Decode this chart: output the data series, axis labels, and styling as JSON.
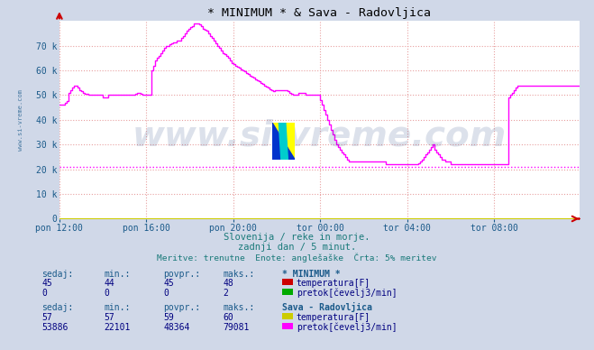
{
  "title": "* MINIMUM * & Sava - Radovljica",
  "bg_color": "#d0d8e8",
  "plot_bg_color": "#ffffff",
  "grid_color": "#e8a0a0",
  "avg_line_value": 21000,
  "avg_line_color": "#ff00ff",
  "sava_line_color": "#ff00ff",
  "axis_arrow_color": "#cc0000",
  "watermark_text": "www.si-vreme.com",
  "watermark_color": "#1a3a7a",
  "watermark_alpha": 0.15,
  "si_vreme_label": "www.si-vreme.com",
  "si_vreme_color": "#1a5a8a",
  "subtitle1": "Slovenija / reke in morje.",
  "subtitle2": "zadnji dan / 5 minut.",
  "subtitle3": "Meritve: trenutne  Enote: anglešaške  Črta: 5% meritev",
  "subtitle_color": "#1a7a7a",
  "table_header_color": "#1a5a8a",
  "table_value_color": "#000080",
  "yticks": [
    0,
    10000,
    20000,
    30000,
    40000,
    50000,
    60000,
    70000
  ],
  "ytick_labels": [
    "0",
    "10 k",
    "20 k",
    "30 k",
    "40 k",
    "50 k",
    "60 k",
    "70 k"
  ],
  "xtick_positions": [
    0,
    48,
    96,
    144,
    192,
    240
  ],
  "xtick_labels": [
    "pon 12:00",
    "pon 16:00",
    "pon 20:00",
    "tor 00:00",
    "tor 04:00",
    "tor 08:00"
  ],
  "station1_name": "* MINIMUM *",
  "station1_temp_sedaj": 45,
  "station1_temp_min": 44,
  "station1_temp_povpr": 45,
  "station1_temp_maks": 48,
  "station1_pretok_sedaj": 0,
  "station1_pretok_min": 0,
  "station1_pretok_povpr": 0,
  "station1_pretok_maks": 2,
  "station1_temp_color": "#cc0000",
  "station1_pretok_color": "#00aa00",
  "station2_name": "Sava - Radovljica",
  "station2_temp_sedaj": 57,
  "station2_temp_min": 57,
  "station2_temp_povpr": 59,
  "station2_temp_maks": 60,
  "station2_pretok_sedaj": 53886,
  "station2_pretok_min": 22101,
  "station2_pretok_povpr": 48364,
  "station2_pretok_maks": 79081,
  "station2_temp_color": "#cccc00",
  "station2_pretok_color": "#ff00ff",
  "sava_flow": [
    46000,
    46000,
    46000,
    47000,
    47500,
    51000,
    52000,
    53000,
    54000,
    54000,
    53000,
    52000,
    51500,
    51000,
    50500,
    50500,
    50000,
    50000,
    50000,
    50000,
    50000,
    50000,
    50000,
    50000,
    49000,
    49000,
    49000,
    50000,
    50000,
    50000,
    50000,
    50000,
    50000,
    50000,
    50000,
    50000,
    50000,
    50000,
    50000,
    50000,
    50000,
    50000,
    50500,
    51000,
    51000,
    50500,
    50000,
    50000,
    50000,
    50000,
    50000,
    60000,
    62000,
    64000,
    65000,
    66000,
    67000,
    68000,
    69000,
    70000,
    70000,
    70500,
    71000,
    71500,
    71500,
    72000,
    72000,
    73000,
    74000,
    75000,
    76000,
    77000,
    77500,
    78000,
    79000,
    79000,
    79000,
    78500,
    78000,
    77000,
    76500,
    76000,
    75000,
    74000,
    73000,
    72000,
    71000,
    70000,
    69000,
    68000,
    67000,
    66500,
    66000,
    65000,
    64000,
    63000,
    62500,
    62000,
    61500,
    61000,
    60500,
    60000,
    59500,
    59000,
    58500,
    58000,
    57500,
    57000,
    56500,
    56000,
    55500,
    55000,
    54500,
    54000,
    53500,
    53000,
    52500,
    52000,
    51500,
    52000,
    52000,
    52000,
    52000,
    52000,
    52000,
    52000,
    51500,
    51000,
    50500,
    50000,
    50000,
    50000,
    51000,
    51000,
    51000,
    51000,
    50000,
    50000,
    50000,
    50000,
    50000,
    50000,
    50000,
    50000,
    48000,
    46000,
    44000,
    42000,
    40000,
    38000,
    36000,
    34000,
    32000,
    30000,
    29000,
    28000,
    27000,
    26000,
    25000,
    24000,
    23000,
    23000,
    23000,
    23000,
    23000,
    23000,
    23000,
    23000,
    23000,
    23000,
    23000,
    23000,
    23000,
    23000,
    23000,
    23000,
    23000,
    23000,
    23000,
    23000,
    22000,
    22000,
    22000,
    22000,
    22000,
    22000,
    22000,
    22000,
    22000,
    22000,
    22000,
    22000,
    22000,
    22000,
    22000,
    22000,
    22000,
    22000,
    22500,
    23000,
    24000,
    25000,
    26000,
    27000,
    28000,
    29000,
    30000,
    28000,
    27000,
    26000,
    25000,
    24000,
    24000,
    23000,
    23000,
    23000,
    22000,
    22000,
    22000,
    22000,
    22000,
    22000,
    22000,
    22000,
    22000,
    22000,
    22000,
    22000,
    22000,
    22000,
    22000,
    22000,
    22000,
    22000,
    22000,
    22000,
    22000,
    22000,
    22000,
    22000,
    22000,
    22000,
    22000,
    22000,
    22000,
    22000,
    22000,
    22000,
    49000,
    50000,
    51000,
    52000,
    53000,
    54000,
    53886,
    53886,
    53886,
    53886,
    53886,
    53886,
    53886,
    53886,
    53886,
    53886,
    53886,
    53886,
    53886,
    53886,
    53886,
    53886,
    53886,
    53886,
    53886,
    53886,
    53886,
    53886,
    53886,
    53886,
    53886,
    53886,
    53886,
    53886,
    53886,
    53886,
    53886,
    53886,
    53886,
    53886
  ]
}
